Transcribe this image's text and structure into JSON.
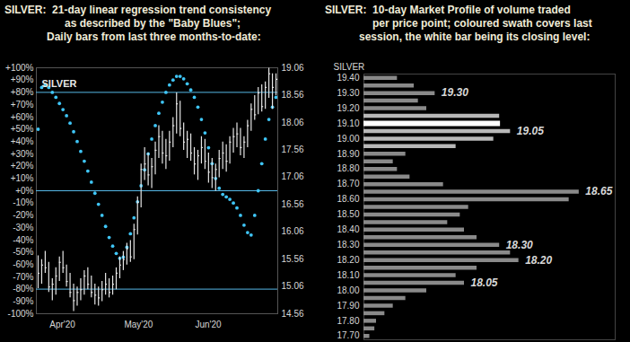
{
  "chart_data": [
    {
      "type": "ohlc",
      "title": "SILVER:  21-day linear regression trend consistency",
      "subtitle": [
        "as described by the \"Baby Blues\";",
        "Daily bars from last three months-to-date:"
      ],
      "categories": [
        null,
        null,
        null,
        null,
        "Apr'20",
        null,
        null,
        null,
        null,
        null,
        null,
        null,
        null,
        null,
        null,
        null,
        null,
        null,
        null,
        null,
        null,
        null,
        null,
        null,
        null,
        "May'20",
        null,
        null,
        null,
        null,
        null,
        null,
        null,
        null,
        null,
        null,
        null,
        null,
        null,
        null,
        null,
        null,
        null,
        null,
        null,
        "Jun'20",
        null,
        null,
        null,
        null,
        null,
        null,
        null,
        null,
        null,
        null,
        null,
        null,
        null,
        null,
        null,
        null,
        null,
        null,
        null,
        null,
        null,
        null
      ],
      "series": [
        {
          "name": "SILVER",
          "type": "ohlc",
          "axis": "y2",
          "color": "#e6e6e6",
          "high": [
            15.62,
            15.55,
            15.7,
            15.5,
            15.2,
            15.4,
            15.6,
            15.7,
            15.45,
            15.3,
            15.1,
            15.05,
            15.2,
            15.35,
            15.4,
            15.25,
            15.1,
            15.05,
            15.15,
            15.3,
            15.2,
            15.25,
            15.4,
            15.6,
            15.7,
            15.85,
            15.9,
            16.2,
            16.7,
            17.3,
            17.6,
            17.5,
            17.4,
            17.7,
            18.0,
            17.9,
            17.75,
            17.9,
            18.15,
            18.6,
            18.45,
            18.05,
            17.9,
            17.85,
            17.6,
            17.55,
            17.8,
            17.75,
            17.5,
            17.4,
            17.3,
            17.55,
            17.7,
            17.65,
            17.8,
            17.95,
            18.05,
            17.95,
            17.8,
            18.1,
            18.4,
            18.55,
            18.7,
            18.75,
            18.8,
            19.05,
            18.95,
            18.95
          ],
          "low": [
            15.02,
            15.1,
            15.3,
            14.95,
            14.8,
            14.9,
            15.15,
            15.3,
            15.05,
            14.85,
            14.6,
            14.7,
            14.8,
            14.9,
            15.0,
            14.85,
            14.72,
            14.7,
            14.78,
            14.9,
            14.85,
            14.9,
            15.0,
            15.2,
            15.35,
            15.45,
            15.5,
            15.55,
            16.0,
            16.5,
            17.0,
            16.9,
            16.85,
            17.1,
            17.4,
            17.3,
            17.2,
            17.35,
            17.6,
            17.85,
            17.8,
            17.55,
            17.4,
            17.35,
            17.1,
            17.0,
            17.3,
            17.2,
            16.95,
            16.85,
            16.8,
            17.05,
            17.2,
            17.15,
            17.3,
            17.5,
            17.6,
            17.45,
            17.4,
            17.6,
            17.9,
            18.1,
            18.2,
            18.25,
            18.3,
            18.5,
            18.3,
            18.55
          ],
          "close": [
            15.3,
            15.45,
            15.4,
            15.05,
            15.1,
            15.25,
            15.5,
            15.4,
            15.15,
            14.95,
            14.8,
            14.95,
            15.0,
            15.25,
            15.1,
            14.95,
            14.9,
            14.85,
            15.0,
            15.1,
            14.95,
            15.1,
            15.3,
            15.45,
            15.55,
            15.75,
            15.6,
            16.1,
            16.6,
            17.2,
            17.3,
            17.1,
            17.25,
            17.55,
            17.8,
            17.5,
            17.45,
            17.7,
            18.0,
            18.4,
            17.95,
            17.7,
            17.75,
            17.5,
            17.3,
            17.45,
            17.6,
            17.35,
            17.15,
            17.05,
            17.2,
            17.4,
            17.5,
            17.35,
            17.7,
            17.8,
            17.85,
            17.6,
            17.7,
            18.0,
            18.3,
            18.2,
            18.6,
            18.35,
            18.7,
            18.95,
            18.7,
            18.85
          ]
        },
        {
          "name": "Baby Blues",
          "type": "scatter",
          "marker": "circle",
          "color": "#3fc6f7",
          "values": [
            50,
            84,
            86,
            84,
            80,
            76,
            71,
            66,
            61,
            55,
            48,
            40,
            32,
            24,
            16,
            7,
            -2,
            -11,
            -20,
            -29,
            -38,
            -45,
            -51,
            -55,
            -54,
            -46,
            -35,
            -22,
            -9,
            4,
            17,
            30,
            42,
            53,
            63,
            72,
            80,
            86,
            90,
            93,
            93,
            91,
            87,
            82,
            76,
            68,
            58,
            47,
            35,
            22,
            10,
            2,
            -3,
            -5,
            -7,
            -10,
            -14,
            -20,
            -28,
            -34,
            -36,
            -20,
            0,
            22,
            42,
            58,
            68,
            76
          ]
        }
      ],
      "ylim": [
        -100,
        100
      ],
      "yticks": [
        {
          "value": 100,
          "label": "+100%"
        },
        {
          "value": 90,
          "label": "+90%"
        },
        {
          "value": 80,
          "label": "+80%"
        },
        {
          "value": 70,
          "label": "+70%"
        },
        {
          "value": 60,
          "label": "+60%"
        },
        {
          "value": 50,
          "label": "+50%"
        },
        {
          "value": 40,
          "label": "+40%"
        },
        {
          "value": 30,
          "label": "+30%"
        },
        {
          "value": 20,
          "label": "+20%"
        },
        {
          "value": 10,
          "label": "+10%"
        },
        {
          "value": 0,
          "label": "+0%"
        },
        {
          "value": -10,
          "label": "-10%"
        },
        {
          "value": -20,
          "label": "-20%"
        },
        {
          "value": -30,
          "label": "-30%"
        },
        {
          "value": -40,
          "label": "-40%"
        },
        {
          "value": -50,
          "label": "-50%"
        },
        {
          "value": -60,
          "label": "-60%"
        },
        {
          "value": -70,
          "label": "-70%"
        },
        {
          "value": -80,
          "label": "-80%"
        },
        {
          "value": -90,
          "label": "-90%"
        },
        {
          "value": -100,
          "label": "-100%"
        }
      ],
      "y2lim": [
        14.56,
        19.06
      ],
      "y2ticks": [
        14.56,
        15.06,
        15.56,
        16.06,
        16.56,
        17.06,
        17.56,
        18.06,
        18.56,
        19.06
      ],
      "hlines": [
        80,
        0,
        -80
      ]
    },
    {
      "type": "bar",
      "orientation": "horizontal",
      "title": "SILVER:  10-day Market Profile of volume traded",
      "subtitle": [
        "per price point; coloured swath covers last",
        "session, the white bar being its closing level:"
      ],
      "ylabel": "SILVER",
      "y": [
        19.4,
        19.35,
        19.3,
        19.25,
        19.2,
        19.15,
        19.1,
        19.05,
        19.0,
        18.95,
        18.9,
        18.85,
        18.8,
        18.75,
        18.7,
        18.65,
        18.6,
        18.55,
        18.5,
        18.45,
        18.4,
        18.35,
        18.3,
        18.25,
        18.2,
        18.15,
        18.1,
        18.05,
        18.0,
        17.95,
        17.9,
        17.85,
        17.8,
        17.75,
        17.7
      ],
      "values": [
        40,
        60,
        85,
        65,
        75,
        162,
        163,
        175,
        155,
        110,
        50,
        35,
        40,
        55,
        95,
        257,
        245,
        125,
        115,
        100,
        120,
        135,
        162,
        175,
        185,
        135,
        110,
        120,
        75,
        50,
        35,
        25,
        15,
        13,
        7
      ],
      "colors": [
        "#8a8a8a",
        "#8a8a8a",
        "#8a8a8a",
        "#8a8a8a",
        "#8a8a8a",
        "#b8b8b8",
        "#ffffff",
        "#b8b8b8",
        "#b8b8b8",
        "#b8b8b8",
        "#8a8a8a",
        "#8a8a8a",
        "#8a8a8a",
        "#8a8a8a",
        "#8a8a8a",
        "#8a8a8a",
        "#8a8a8a",
        "#8a8a8a",
        "#8a8a8a",
        "#8a8a8a",
        "#8a8a8a",
        "#8a8a8a",
        "#8a8a8a",
        "#8a8a8a",
        "#8a8a8a",
        "#8a8a8a",
        "#8a8a8a",
        "#8a8a8a",
        "#8a8a8a",
        "#8a8a8a",
        "#8a8a8a",
        "#8a8a8a",
        "#8a8a8a",
        "#8a8a8a",
        "#8a8a8a"
      ],
      "xlim": [
        0,
        300
      ],
      "ylim": [
        17.675,
        19.425
      ],
      "yticks": [
        {
          "value": 19.4,
          "label": "19.40"
        },
        {
          "value": 19.3,
          "label": "19.30"
        },
        {
          "value": 19.2,
          "label": "19.20"
        },
        {
          "value": 19.1,
          "label": "19.10"
        },
        {
          "value": 19.0,
          "label": "19.00"
        },
        {
          "value": 18.9,
          "label": "18.90"
        },
        {
          "value": 18.8,
          "label": "18.80"
        },
        {
          "value": 18.7,
          "label": "18.70"
        },
        {
          "value": 18.6,
          "label": "18.60"
        },
        {
          "value": 18.5,
          "label": "18.50"
        },
        {
          "value": 18.4,
          "label": "18.40"
        },
        {
          "value": 18.3,
          "label": "18.30"
        },
        {
          "value": 18.2,
          "label": "18.20"
        },
        {
          "value": 18.1,
          "label": "18.10"
        },
        {
          "value": 18.0,
          "label": "18.00"
        },
        {
          "value": 17.9,
          "label": "17.90"
        },
        {
          "value": 17.8,
          "label": "17.80"
        },
        {
          "value": 17.7,
          "label": "17.70"
        }
      ],
      "tick_labels": "y",
      "annotations": [
        {
          "y": 19.3,
          "text": "19.30"
        },
        {
          "y": 19.05,
          "text": "19.05"
        },
        {
          "y": 18.65,
          "text": "18.65"
        },
        {
          "y": 18.3,
          "text": "18.30"
        },
        {
          "y": 18.2,
          "text": "18.20"
        },
        {
          "y": 18.05,
          "text": "18.05"
        }
      ]
    }
  ]
}
